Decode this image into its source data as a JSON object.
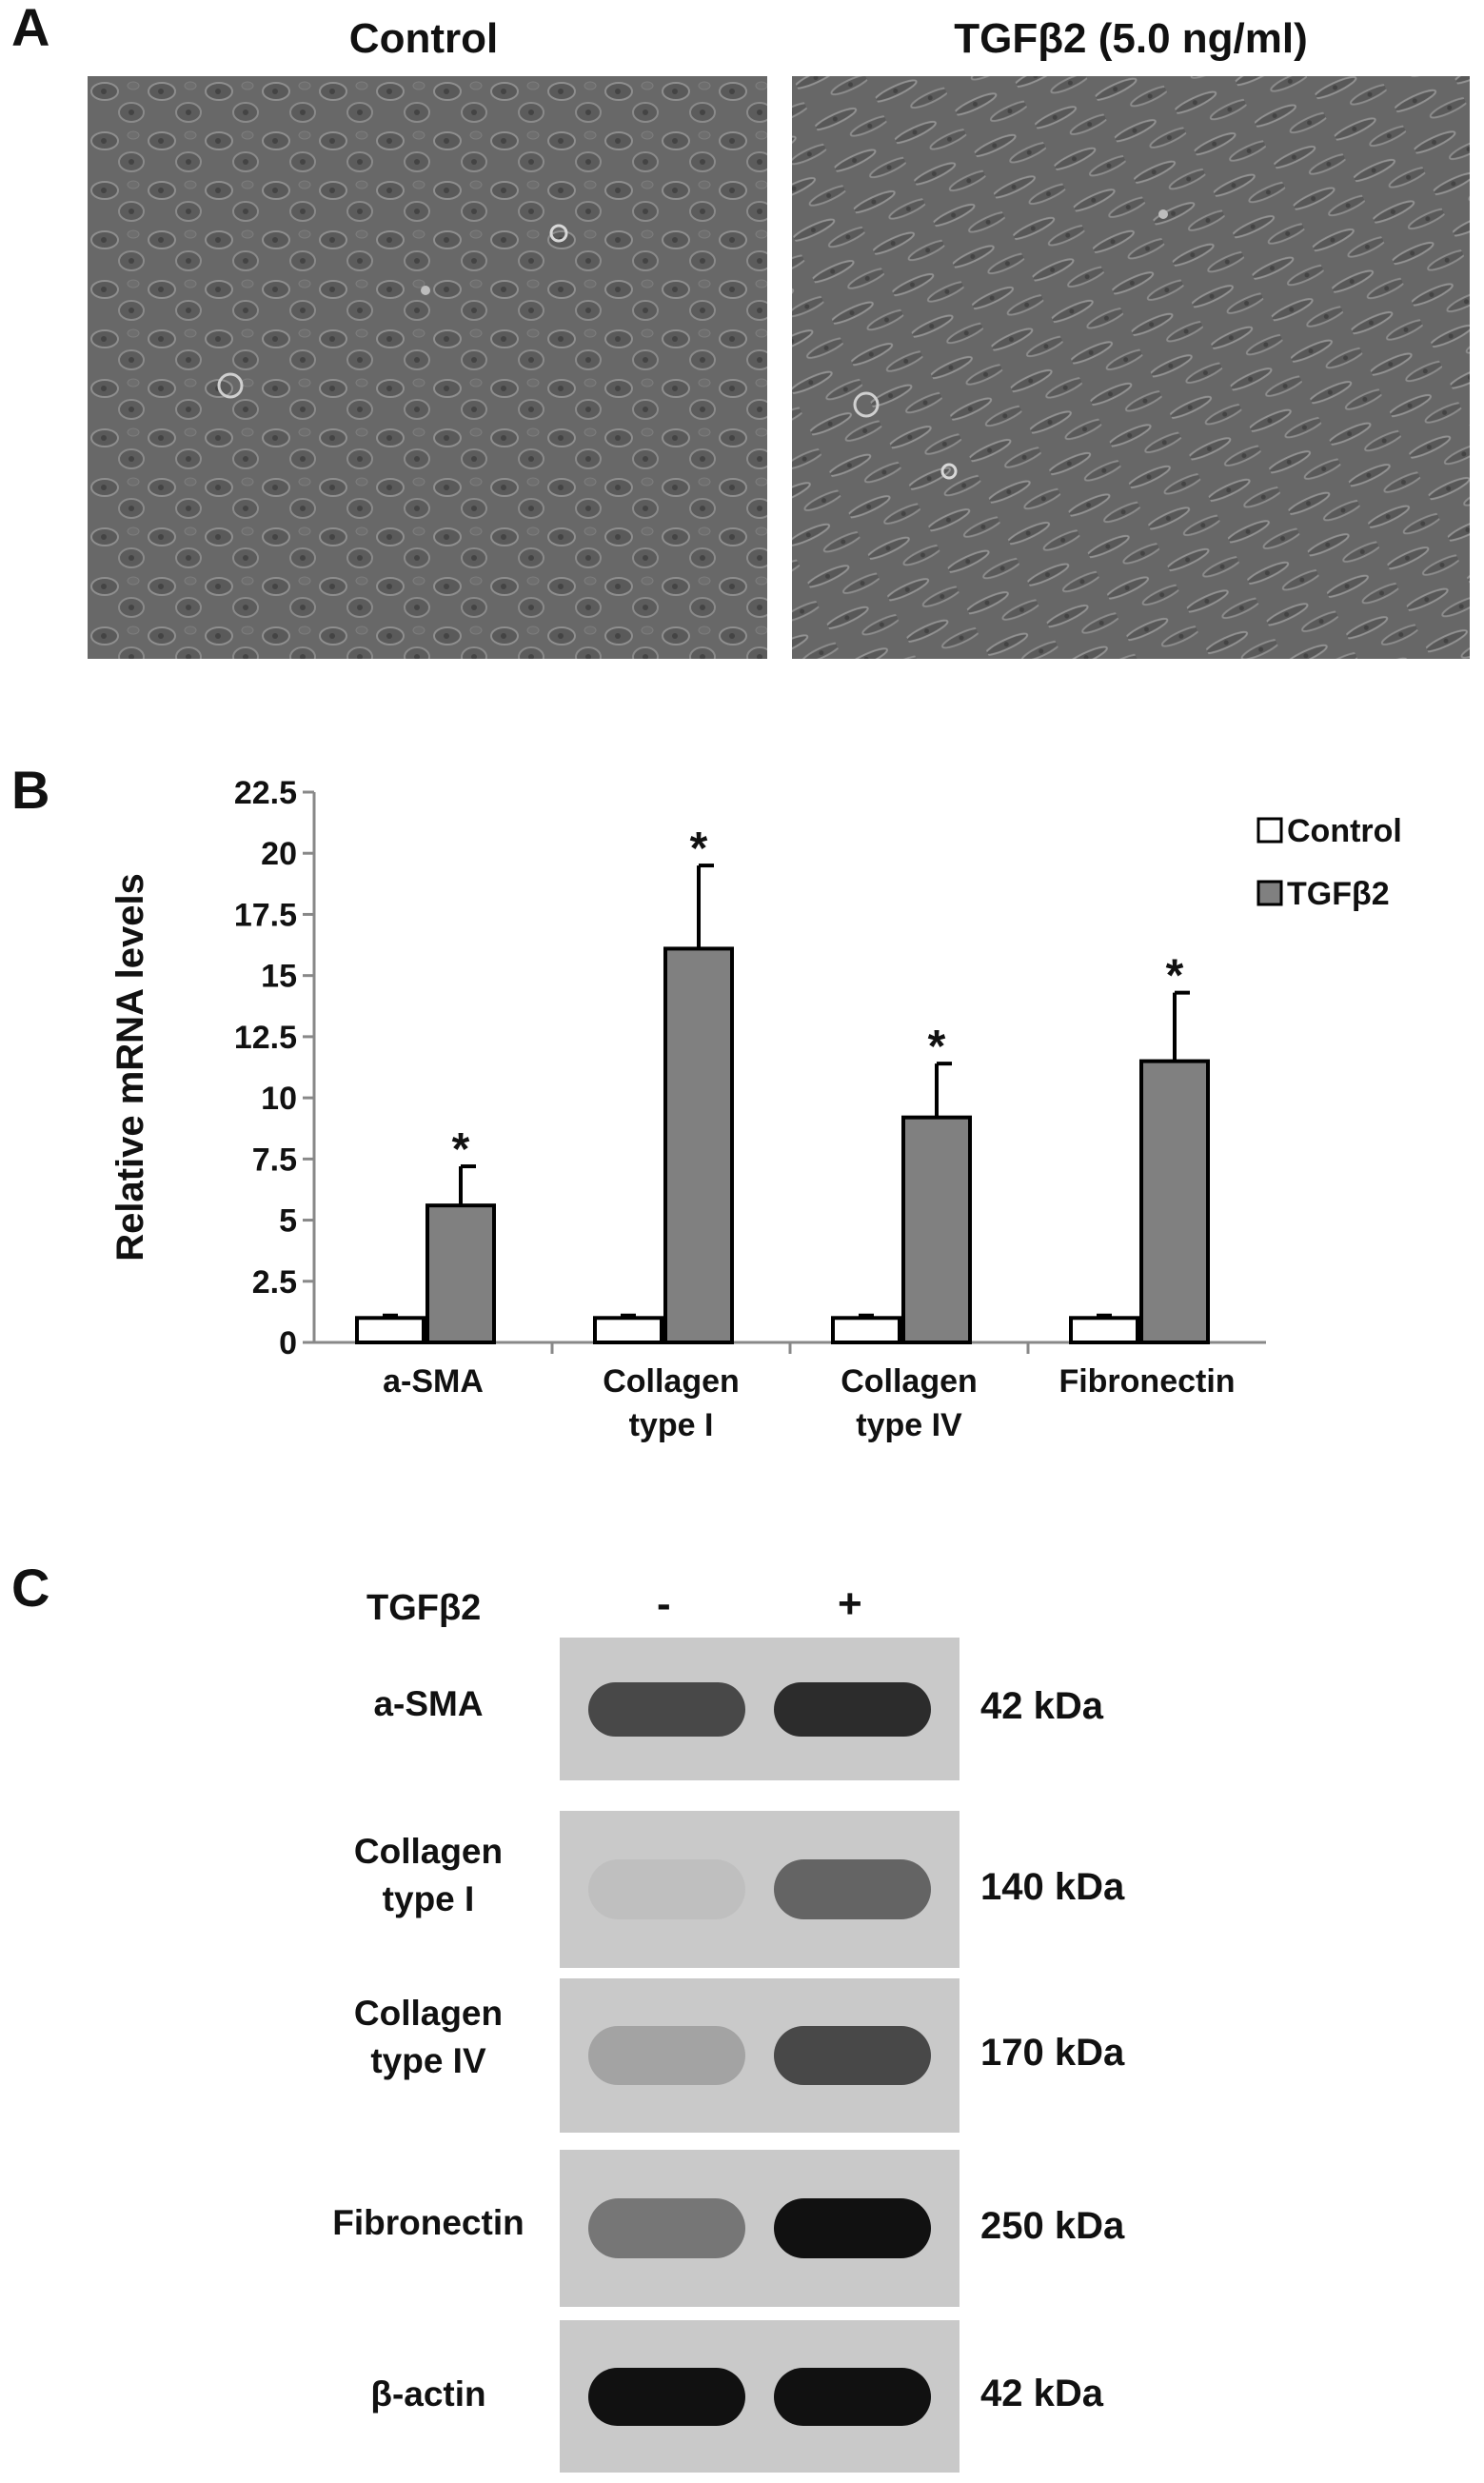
{
  "panel_a": {
    "letter": "A",
    "left_title": "Control",
    "right_title": "TGFβ2 (5.0 ng/ml)"
  },
  "panel_b": {
    "letter": "B"
  },
  "panel_c": {
    "letter": "C",
    "treatment_label": "TGFβ2",
    "lane_signs": [
      "-",
      "+"
    ],
    "blots": [
      {
        "label": "a-SMA",
        "kda": "42 kDa",
        "left_intensity": 0.7,
        "right_intensity": 0.85
      },
      {
        "label": "Collagen type I",
        "kda": "140 kDa",
        "left_intensity": 0.05,
        "right_intensity": 0.55
      },
      {
        "label": "Collagen type IV",
        "kda": "170 kDa",
        "left_intensity": 0.2,
        "right_intensity": 0.7
      },
      {
        "label": "Fibronectin",
        "kda": "250 kDa",
        "left_intensity": 0.45,
        "right_intensity": 1.0
      },
      {
        "label": "β-actin",
        "kda": "42 kDa",
        "left_intensity": 1.0,
        "right_intensity": 1.0
      }
    ]
  },
  "chart_data": {
    "type": "bar",
    "title": "",
    "xlabel": "",
    "ylabel": "Relative mRNA levels",
    "ylim": [
      0,
      22.5
    ],
    "yticks": [
      "0",
      "2.5",
      "5",
      "7.5",
      "10",
      "12.5",
      "15",
      "17.5",
      "20",
      "22.5"
    ],
    "categories": [
      "a-SMA",
      "Collagen type I",
      "Collagen type IV",
      "Fibronectin"
    ],
    "category_lines": [
      [
        "a-SMA"
      ],
      [
        "Collagen",
        "type I"
      ],
      [
        "Collagen",
        "type IV"
      ],
      [
        "Fibronectin"
      ]
    ],
    "series": [
      {
        "name": "Control",
        "values": [
          1.0,
          1.0,
          1.0,
          1.0
        ],
        "errors": [
          0.1,
          0.1,
          0.1,
          0.1
        ],
        "color": "#ffffff"
      },
      {
        "name": "TGFβ2",
        "values": [
          5.6,
          16.1,
          9.2,
          11.5
        ],
        "errors": [
          1.6,
          3.4,
          2.2,
          2.8
        ],
        "color": "#808080"
      }
    ],
    "significance_marks": [
      "*",
      "*",
      "*",
      "*"
    ],
    "legend_position": "top-right",
    "grid": false
  }
}
